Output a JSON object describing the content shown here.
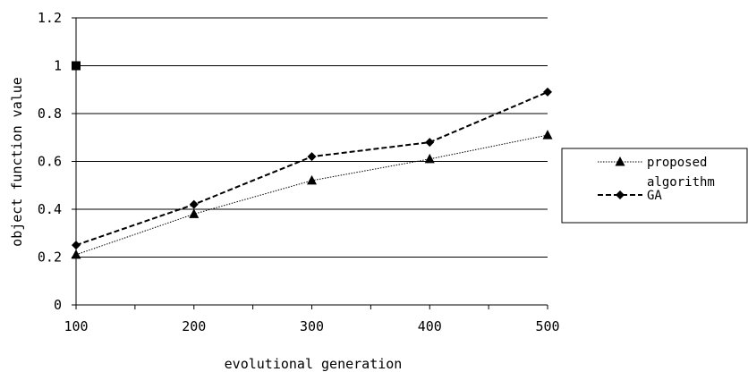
{
  "chart_data": {
    "type": "line",
    "title": "",
    "xlabel": "evolutional generation",
    "ylabel": "object function value",
    "categories": [
      "100",
      "200",
      "300",
      "400",
      "500"
    ],
    "ylim": [
      0,
      1.2
    ],
    "yticks": [
      "0",
      "0.2",
      "0.4",
      "0.6",
      "0.8",
      "1",
      "1.2"
    ],
    "grid": "horizontal",
    "legend_position": "right",
    "series": [
      {
        "name": "proposed algorithm",
        "legend_lines": [
          "proposed",
          "algorithm"
        ],
        "marker": "triangle",
        "line_style": "dotted",
        "color": "#000000",
        "values": [
          0.21,
          0.38,
          0.52,
          0.61,
          0.71
        ]
      },
      {
        "name": "GA",
        "marker": "diamond",
        "line_style": "dashed",
        "color": "#000000",
        "values": [
          0.25,
          0.42,
          0.62,
          0.68,
          0.89
        ]
      }
    ],
    "extra_points": [
      {
        "x": "100",
        "y": 1.0,
        "marker": "square"
      }
    ]
  }
}
